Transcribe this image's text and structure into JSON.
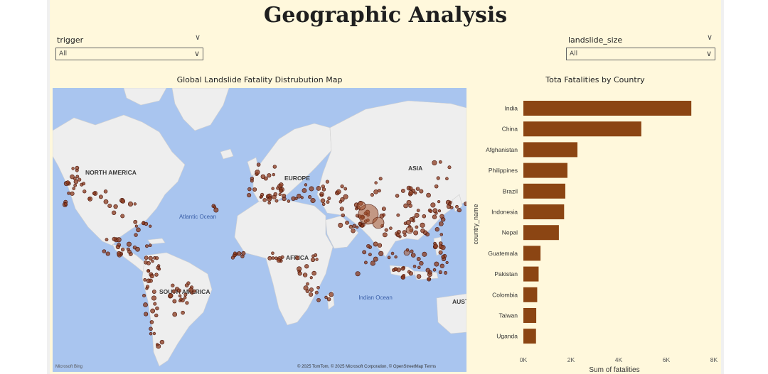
{
  "page_title": "Geographic Analysis",
  "slicers": [
    {
      "label": "trigger",
      "value": "All"
    },
    {
      "label": "landslide_size",
      "value": "All"
    }
  ],
  "map": {
    "title": "Global Landslide Fatality Distrubution Map",
    "continent_labels": [
      "NORTH AMERICA",
      "SOUTH AMERICA",
      "EUROPE",
      "AFRICA",
      "ASIA",
      "AUST"
    ],
    "ocean_labels": [
      "Atlantic Ocean",
      "Indian Ocean"
    ],
    "attribution": "© 2025 TomTom, © 2025 Microsoft Corporation, © OpenStreetMap  Terms",
    "logo": "Microsoft Bing",
    "colors": {
      "ocean": "#a9c5ef",
      "land": "#eeeeee",
      "marker": "#8b3a1e",
      "marker_stroke": "#4a1408"
    }
  },
  "chart_data": {
    "type": "bar",
    "orientation": "horizontal",
    "title": "Tota Fatalities by Country",
    "xlabel": "Sum of fatalities",
    "ylabel": "country_name",
    "categories": [
      "India",
      "China",
      "Afghanistan",
      "Philippines",
      "Brazil",
      "Indonesia",
      "Nepal",
      "Guatemala",
      "Pakistan",
      "Colombia",
      "Taiwan",
      "Uganda"
    ],
    "values": [
      7050,
      4950,
      2270,
      1850,
      1760,
      1710,
      1490,
      720,
      640,
      580,
      540,
      530
    ],
    "xlim": [
      0,
      8000
    ],
    "xticks": [
      "0K",
      "2K",
      "4K",
      "6K",
      "8K"
    ],
    "bar_color": "#8b4513"
  }
}
